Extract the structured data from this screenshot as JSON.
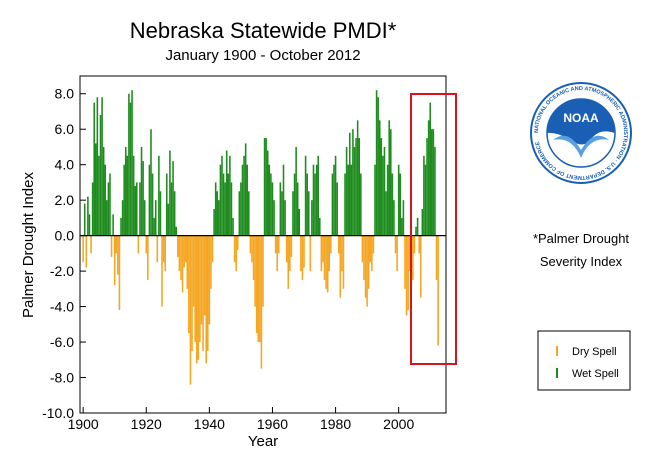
{
  "chart_data": {
    "type": "bar",
    "title": "Nebraska Statewide PMDI*",
    "subtitle": "January 1900 - October 2012",
    "xlabel": "Year",
    "ylabel": "Palmer Drought Index",
    "xlim": [
      1899,
      2015
    ],
    "ylim": [
      -10.0,
      9.0
    ],
    "x_ticks": [
      1900,
      1920,
      1940,
      1960,
      1980,
      2000
    ],
    "x_tick_labels": [
      "1900",
      "1920",
      "1940",
      "1960",
      "1980",
      "2000"
    ],
    "y_ticks": [
      8.0,
      6.0,
      4.0,
      2.0,
      0.0,
      -2.0,
      -4.0,
      -6.0,
      -8.0,
      -10.0
    ],
    "y_tick_labels": [
      "8.0",
      "6.0",
      "4.0",
      "2.0",
      "0.0",
      "-2.0",
      "-4.0",
      "-6.0",
      "-8.0",
      "-10.0"
    ],
    "zero_line": true,
    "grid": false,
    "legend_position": "right",
    "series": [
      {
        "name": "Dry Spell",
        "color": "#f5a623"
      },
      {
        "name": "Wet Spell",
        "color": "#1e8c1e"
      }
    ],
    "x": [
      1900.0,
      1900.5,
      1901.0,
      1901.5,
      1902.0,
      1902.5,
      1903.0,
      1903.5,
      1904.0,
      1904.5,
      1905.0,
      1905.5,
      1906.0,
      1906.5,
      1907.0,
      1907.5,
      1908.0,
      1908.5,
      1909.0,
      1909.5,
      1910.0,
      1910.5,
      1911.0,
      1911.5,
      1912.0,
      1912.5,
      1913.0,
      1913.5,
      1914.0,
      1914.5,
      1915.0,
      1915.5,
      1916.0,
      1916.5,
      1917.0,
      1917.5,
      1918.0,
      1918.5,
      1919.0,
      1919.5,
      1920.0,
      1920.5,
      1921.0,
      1921.5,
      1922.0,
      1922.5,
      1923.0,
      1923.5,
      1924.0,
      1924.5,
      1925.0,
      1925.5,
      1926.0,
      1926.5,
      1927.0,
      1927.5,
      1928.0,
      1928.5,
      1929.0,
      1929.5,
      1930.0,
      1930.5,
      1931.0,
      1931.5,
      1932.0,
      1932.5,
      1933.0,
      1933.5,
      1934.0,
      1934.5,
      1935.0,
      1935.5,
      1936.0,
      1936.5,
      1937.0,
      1937.5,
      1938.0,
      1938.5,
      1939.0,
      1939.5,
      1940.0,
      1940.5,
      1941.0,
      1941.5,
      1942.0,
      1942.5,
      1943.0,
      1943.5,
      1944.0,
      1944.5,
      1945.0,
      1945.5,
      1946.0,
      1946.5,
      1947.0,
      1947.5,
      1948.0,
      1948.5,
      1949.0,
      1949.5,
      1950.0,
      1950.5,
      1951.0,
      1951.5,
      1952.0,
      1952.5,
      1953.0,
      1953.5,
      1954.0,
      1954.5,
      1955.0,
      1955.5,
      1956.0,
      1956.5,
      1957.0,
      1957.5,
      1958.0,
      1958.5,
      1959.0,
      1959.5,
      1960.0,
      1960.5,
      1961.0,
      1961.5,
      1962.0,
      1962.5,
      1963.0,
      1963.5,
      1964.0,
      1964.5,
      1965.0,
      1965.5,
      1966.0,
      1966.5,
      1967.0,
      1967.5,
      1968.0,
      1968.5,
      1969.0,
      1969.5,
      1970.0,
      1970.5,
      1971.0,
      1971.5,
      1972.0,
      1972.5,
      1973.0,
      1973.5,
      1974.0,
      1974.5,
      1975.0,
      1975.5,
      1976.0,
      1976.5,
      1977.0,
      1977.5,
      1978.0,
      1978.5,
      1979.0,
      1979.5,
      1980.0,
      1980.5,
      1981.0,
      1981.5,
      1982.0,
      1982.5,
      1983.0,
      1983.5,
      1984.0,
      1984.5,
      1985.0,
      1985.5,
      1986.0,
      1986.5,
      1987.0,
      1987.5,
      1988.0,
      1988.5,
      1989.0,
      1989.5,
      1990.0,
      1990.5,
      1991.0,
      1991.5,
      1992.0,
      1992.5,
      1993.0,
      1993.5,
      1994.0,
      1994.5,
      1995.0,
      1995.5,
      1996.0,
      1996.5,
      1997.0,
      1997.5,
      1998.0,
      1998.5,
      1999.0,
      1999.5,
      2000.0,
      2000.5,
      2001.0,
      2001.5,
      2002.0,
      2002.5,
      2003.0,
      2003.5,
      2004.0,
      2004.5,
      2005.0,
      2005.5,
      2006.0,
      2006.5,
      2007.0,
      2007.5,
      2008.0,
      2008.5,
      2009.0,
      2009.5,
      2010.0,
      2010.5,
      2011.0,
      2011.5,
      2012.0,
      2012.5
    ],
    "values": [
      -1.5,
      1.8,
      -1.8,
      2.2,
      1.2,
      -1.0,
      3.0,
      7.5,
      5.2,
      7.8,
      4.5,
      6.8,
      7.8,
      5.0,
      4.0,
      2.0,
      3.0,
      3.5,
      -1.2,
      1.2,
      -2.8,
      -1.0,
      -2.2,
      -4.2,
      1.0,
      2.0,
      4.0,
      5.0,
      4.5,
      8.0,
      7.5,
      8.2,
      4.5,
      2.8,
      3.0,
      -1.0,
      3.0,
      5.0,
      4.2,
      2.0,
      -1.0,
      -2.5,
      4.0,
      6.0,
      3.5,
      1.0,
      2.0,
      -1.5,
      4.5,
      2.5,
      -4.0,
      -1.5,
      -2.0,
      3.5,
      1.8,
      4.8,
      3.0,
      4.2,
      2.5,
      0.5,
      -1.2,
      -2.0,
      -2.5,
      -3.2,
      -1.8,
      -1.5,
      -3.0,
      -5.5,
      -8.4,
      -6.5,
      -4.0,
      -6.0,
      -7.2,
      -7.0,
      -6.0,
      -5.0,
      -6.5,
      -4.5,
      -7.2,
      -6.5,
      -5.0,
      -3.0,
      -1.5,
      1.5,
      3.0,
      2.5,
      2.0,
      4.0,
      4.5,
      3.5,
      3.0,
      4.8,
      3.5,
      4.5,
      3.0,
      1.0,
      -1.5,
      -2.0,
      -0.8,
      2.5,
      3.0,
      4.0,
      4.5,
      5.2,
      4.0,
      2.5,
      -1.0,
      -1.5,
      -2.5,
      -4.0,
      -5.5,
      -6.0,
      -6.0,
      -7.5,
      -4.0,
      5.5,
      5.5,
      4.8,
      4.0,
      3.5,
      3.0,
      2.0,
      -1.0,
      -2.0,
      -1.0,
      3.0,
      2.5,
      4.0,
      2.0,
      -1.5,
      -3.0,
      -2.0,
      -1.2,
      2.5,
      3.5,
      5.0,
      3.0,
      1.5,
      -2.0,
      -2.5,
      -1.8,
      4.5,
      3.5,
      2.5,
      -2.0,
      2.0,
      4.0,
      3.5,
      4.0,
      4.5,
      1.0,
      -2.0,
      -1.5,
      -2.5,
      -3.0,
      -3.2,
      -2.0,
      -1.0,
      3.5,
      4.0,
      4.5,
      3.0,
      -1.0,
      -3.5,
      -2.0,
      -3.0,
      3.5,
      5.0,
      4.0,
      5.8,
      4.0,
      6.0,
      5.0,
      5.5,
      6.5,
      5.5,
      3.5,
      -1.5,
      -2.5,
      -3.5,
      -4.0,
      -3.0,
      -1.5,
      -2.0,
      -1.0,
      4.0,
      8.2,
      7.8,
      6.5,
      5.5,
      4.5,
      5.0,
      2.5,
      4.0,
      6.5,
      6.0,
      3.5,
      2.0,
      -1.0,
      -2.0,
      4.0,
      3.5,
      1.0,
      2.0,
      -3.0,
      -4.5,
      -4.2,
      -2.0,
      -3.0,
      -2.5,
      -1.0,
      0.5,
      1.0,
      -1.0,
      -3.5,
      1.5,
      4.5,
      4.0,
      5.5,
      6.5,
      7.5,
      6.0,
      6.0,
      5.0,
      -2.5,
      -6.2
    ]
  },
  "legend_items": [
    {
      "label": "Dry Spell",
      "color": "#f5a623"
    },
    {
      "label": "Wet Spell",
      "color": "#1e8c1e"
    }
  ],
  "footnote": {
    "line1": "*Palmer Drought",
    "line2": "Severity Index"
  },
  "logo": {
    "center_text": "NOAA",
    "ring_text": "NATIONAL OCEANIC AND ATMOSPHERIC ADMINISTRATION · U.S. DEPARTMENT OF COMMERCE",
    "color": "#1a5fb4"
  },
  "highlight_box": {
    "color": "#d9141e"
  }
}
